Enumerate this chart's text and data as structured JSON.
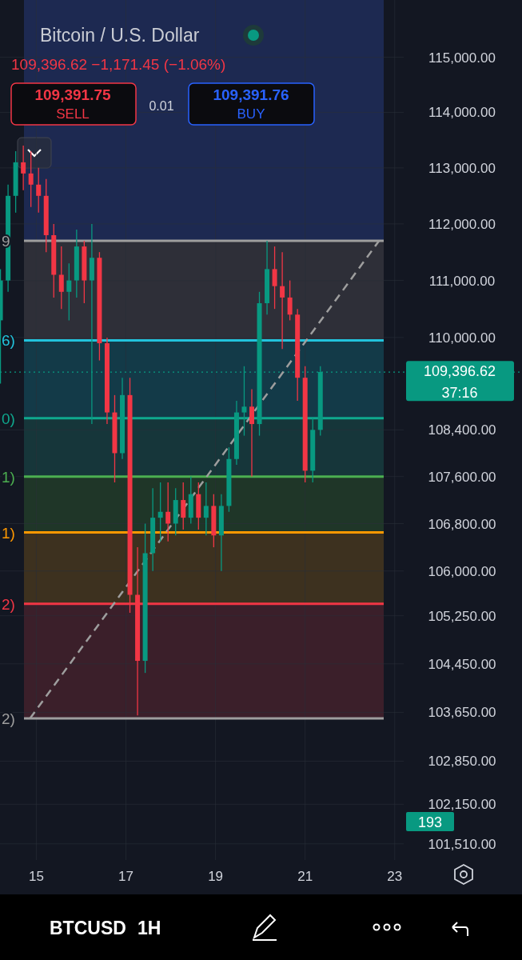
{
  "chart_data": {
    "type": "candlestick",
    "title": "Bitcoin / U.S. Dollar",
    "subtitle": "109,396.62 −1,171.45 (−1.06%)",
    "annotations": [
      "109,391.75",
      "SELL",
      "0.01",
      "109,391.76",
      "BUY",
      "37:16",
      "193",
      "BTCUSD",
      "1H",
      "9",
      "6)",
      "0)",
      "1)",
      "1)",
      "2)",
      "2)"
    ],
    "log": true,
    "grid": true,
    "xlim": [
      14.19,
      23.2
    ],
    "xticks": [
      15,
      17,
      19,
      21,
      23
    ],
    "ylim": [
      101250,
      116050
    ],
    "yticks": [
      {
        "value": 115000,
        "label": "115,000.00"
      },
      {
        "value": 114000,
        "label": "114,000.00"
      },
      {
        "value": 113000,
        "label": "113,000.00"
      },
      {
        "value": 112000,
        "label": "112,000.00"
      },
      {
        "value": 111000,
        "label": "111,000.00"
      },
      {
        "value": 110000,
        "label": "110,000.00"
      },
      {
        "value": 108400,
        "label": "108,400.00"
      },
      {
        "value": 107600,
        "label": "107,600.00"
      },
      {
        "value": 106800,
        "label": "106,800.00"
      },
      {
        "value": 106000,
        "label": "106,000.00"
      },
      {
        "value": 105250,
        "label": "105,250.00"
      },
      {
        "value": 104450,
        "label": "104,450.00"
      },
      {
        "value": 103650,
        "label": "103,650.00"
      },
      {
        "value": 102850,
        "label": "102,850.00"
      },
      {
        "value": 102150,
        "label": "102,150.00"
      },
      {
        "value": 101510,
        "label": "101,510.00"
      }
    ],
    "x": [
      14.2,
      14.37,
      14.54,
      14.71,
      14.88,
      15.05,
      15.22,
      15.39,
      15.56,
      15.73,
      15.9,
      16.07,
      16.24,
      16.41,
      16.58,
      16.75,
      16.92,
      17.09,
      17.26,
      17.43,
      17.6,
      17.77,
      17.94,
      18.11,
      18.28,
      18.45,
      18.62,
      18.79,
      18.96,
      19.13,
      19.3,
      19.47,
      19.64,
      19.81,
      19.98,
      20.15,
      20.32,
      20.49,
      20.66,
      20.83,
      21.0,
      21.17,
      21.34
    ],
    "ohlc": [
      [
        110300,
        111200,
        109200,
        111000
      ],
      [
        111000,
        112700,
        110800,
        112500
      ],
      [
        112500,
        113300,
        112200,
        113100
      ],
      [
        113100,
        113400,
        112600,
        112900
      ],
      [
        112900,
        113300,
        112300,
        112700
      ],
      [
        112700,
        113000,
        112200,
        112500
      ],
      [
        112500,
        112800,
        111500,
        111800
      ],
      [
        111800,
        112000,
        110700,
        111100
      ],
      [
        111100,
        111600,
        110500,
        110800
      ],
      [
        110800,
        111300,
        110300,
        111000
      ],
      [
        111000,
        111900,
        110700,
        111600
      ],
      [
        111600,
        111700,
        110600,
        111000
      ],
      [
        111000,
        112000,
        108500,
        111400
      ],
      [
        111400,
        111500,
        109600,
        109900
      ],
      [
        109900,
        110000,
        108500,
        108700
      ],
      [
        108700,
        109000,
        107500,
        108000
      ],
      [
        108000,
        109300,
        107900,
        109000
      ],
      [
        109000,
        109300,
        105300,
        105600
      ],
      [
        105600,
        106400,
        103600,
        104500
      ],
      [
        104500,
        106800,
        104300,
        106300
      ],
      [
        106300,
        107400,
        106000,
        106900
      ],
      [
        106900,
        107500,
        106500,
        107000
      ],
      [
        107000,
        107500,
        106500,
        106800
      ],
      [
        106800,
        107400,
        106600,
        107200
      ],
      [
        107200,
        107500,
        106700,
        106900
      ],
      [
        106900,
        107600,
        106800,
        107300
      ],
      [
        107300,
        107500,
        106700,
        106900
      ],
      [
        106900,
        107500,
        106600,
        107100
      ],
      [
        107100,
        107300,
        106400,
        106600
      ],
      [
        106600,
        107300,
        106000,
        107100
      ],
      [
        107100,
        108100,
        107000,
        107900
      ],
      [
        107900,
        108900,
        107800,
        108700
      ],
      [
        108700,
        109500,
        108300,
        108800
      ],
      [
        108800,
        109100,
        107600,
        108500
      ],
      [
        108500,
        110800,
        108300,
        110600
      ],
      [
        110600,
        111700,
        110400,
        111200
      ],
      [
        111200,
        111600,
        110500,
        110900
      ],
      [
        110900,
        111500,
        109800,
        110700
      ],
      [
        110700,
        111000,
        110300,
        110400
      ],
      [
        110400,
        110500,
        108900,
        109300
      ],
      [
        109300,
        109500,
        107500,
        107700
      ],
      [
        107700,
        108600,
        107500,
        108400
      ],
      [
        108400,
        109500,
        108300,
        109400
      ]
    ],
    "series": [
      {
        "type": "line",
        "color": "#9e9e9e",
        "line_style": "dashed",
        "x": [
          14.86,
          22.65
        ],
        "values": [
          103550,
          111700
        ]
      }
    ],
    "bands": [
      {
        "axis": "y",
        "from": 111700,
        "to": 116050,
        "color": "#1d2951"
      },
      {
        "axis": "y",
        "from": 109950,
        "to": 111700,
        "color": "#2e2f38"
      },
      {
        "axis": "y",
        "from": 108600,
        "to": 109950,
        "color": "#133a48"
      },
      {
        "axis": "y",
        "from": 107600,
        "to": 108600,
        "color": "#16363a"
      },
      {
        "axis": "y",
        "from": 106650,
        "to": 107600,
        "color": "#1f3628"
      },
      {
        "axis": "y",
        "from": 105450,
        "to": 106650,
        "color": "#3d311f"
      },
      {
        "axis": "y",
        "from": 103550,
        "to": 105450,
        "color": "#3b1f2a"
      }
    ],
    "ref_lines": [
      {
        "axis": "y",
        "value": 111700,
        "color": "#9e9e9e"
      },
      {
        "axis": "y",
        "value": 109950,
        "color": "#22c3dc"
      },
      {
        "axis": "y",
        "value": 108600,
        "color": "#0fa88e"
      },
      {
        "axis": "y",
        "value": 107600,
        "color": "#4caf50"
      },
      {
        "axis": "y",
        "value": 106650,
        "color": "#ff9800"
      },
      {
        "axis": "y",
        "value": 105450,
        "color": "#f23645"
      },
      {
        "axis": "y",
        "value": 103550,
        "color": "#9e9e9e"
      },
      {
        "axis": "y",
        "value": 109396.62,
        "label": "109,396.62",
        "color": "#089981",
        "line_style": "dotted"
      }
    ]
  }
}
